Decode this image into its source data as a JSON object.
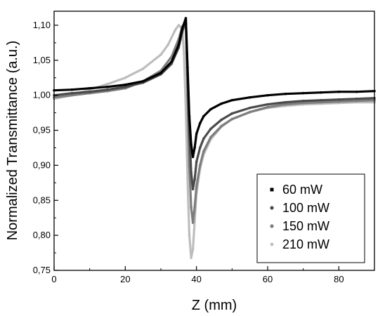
{
  "chart_data": {
    "type": "scatter",
    "xlabel": "Z (mm)",
    "ylabel": "Normalized Transmittance (a.u.)",
    "xlim": [
      0,
      90
    ],
    "ylim": [
      0.75,
      1.12
    ],
    "xticks": [
      {
        "value": 0,
        "label": "0"
      },
      {
        "value": 20,
        "label": "20"
      },
      {
        "value": 40,
        "label": "40"
      },
      {
        "value": 60,
        "label": "60"
      },
      {
        "value": 80,
        "label": "80"
      }
    ],
    "yticks": [
      {
        "value": 0.75,
        "label": "0,75"
      },
      {
        "value": 0.8,
        "label": "0,80"
      },
      {
        "value": 0.85,
        "label": "0,85"
      },
      {
        "value": 0.9,
        "label": "0,90"
      },
      {
        "value": 0.95,
        "label": "0,95"
      },
      {
        "value": 1.0,
        "label": "1,00"
      },
      {
        "value": 1.05,
        "label": "1,05"
      },
      {
        "value": 1.1,
        "label": "1,10"
      }
    ],
    "grid": false,
    "legend_position": "bottom-right",
    "series": [
      {
        "name": "60 mW",
        "color": "#000000",
        "marker": "square",
        "x": [
          0,
          5,
          10,
          15,
          20,
          25,
          30,
          33,
          35,
          36,
          37,
          37.5,
          38,
          38.5,
          39,
          39.5,
          40,
          41,
          42,
          44,
          47,
          50,
          55,
          60,
          65,
          70,
          75,
          80,
          85,
          90
        ],
        "y": [
          1.007,
          1.008,
          1.01,
          1.012,
          1.015,
          1.02,
          1.032,
          1.048,
          1.072,
          1.095,
          1.11,
          1.04,
          0.97,
          0.93,
          0.912,
          0.925,
          0.945,
          0.96,
          0.97,
          0.98,
          0.988,
          0.993,
          0.997,
          1.0,
          1.002,
          1.003,
          1.004,
          1.005,
          1.005,
          1.006
        ]
      },
      {
        "name": "100 mW",
        "color": "#4a4a4a",
        "marker": "circle",
        "x": [
          0,
          5,
          10,
          15,
          20,
          25,
          30,
          33,
          35,
          36,
          37,
          37.5,
          38,
          38.5,
          39,
          39.5,
          40,
          41,
          42,
          44,
          47,
          50,
          55,
          60,
          65,
          70,
          75,
          80,
          85,
          90
        ],
        "y": [
          1.0,
          1.003,
          1.005,
          1.008,
          1.012,
          1.018,
          1.03,
          1.045,
          1.068,
          1.09,
          1.108,
          1.03,
          0.95,
          0.89,
          0.866,
          0.88,
          0.905,
          0.925,
          0.938,
          0.952,
          0.965,
          0.974,
          0.982,
          0.987,
          0.99,
          0.992,
          0.993,
          0.994,
          0.995,
          0.996
        ]
      },
      {
        "name": "150 mW",
        "color": "#7d7d7d",
        "marker": "circle",
        "x": [
          0,
          5,
          10,
          15,
          20,
          25,
          30,
          33,
          35,
          36,
          37,
          37.5,
          38,
          38.5,
          39,
          39.5,
          40,
          41,
          42,
          44,
          47,
          50,
          55,
          60,
          65,
          70,
          75,
          80,
          85,
          90
        ],
        "y": [
          0.997,
          1.0,
          1.003,
          1.006,
          1.01,
          1.02,
          1.035,
          1.055,
          1.08,
          1.098,
          1.105,
          1.0,
          0.9,
          0.84,
          0.818,
          0.84,
          0.87,
          0.9,
          0.92,
          0.94,
          0.956,
          0.966,
          0.976,
          0.983,
          0.987,
          0.989,
          0.99,
          0.991,
          0.992,
          0.993
        ]
      },
      {
        "name": "210 mW",
        "color": "#bdbdbd",
        "marker": "diamond",
        "x": [
          0,
          5,
          10,
          15,
          20,
          25,
          30,
          32,
          34,
          35,
          36,
          36.5,
          37,
          37.5,
          38,
          38.5,
          39,
          39.5,
          40,
          41,
          42,
          44,
          47,
          50,
          55,
          60,
          65,
          70,
          75,
          80,
          85,
          90
        ],
        "y": [
          0.995,
          1.0,
          1.008,
          1.016,
          1.025,
          1.038,
          1.058,
          1.072,
          1.093,
          1.1,
          1.095,
          1.06,
          0.98,
          0.88,
          0.8,
          0.768,
          0.78,
          0.82,
          0.86,
          0.895,
          0.915,
          0.937,
          0.955,
          0.966,
          0.976,
          0.982,
          0.985,
          0.987,
          0.988,
          0.989,
          0.99,
          0.99
        ]
      }
    ]
  }
}
